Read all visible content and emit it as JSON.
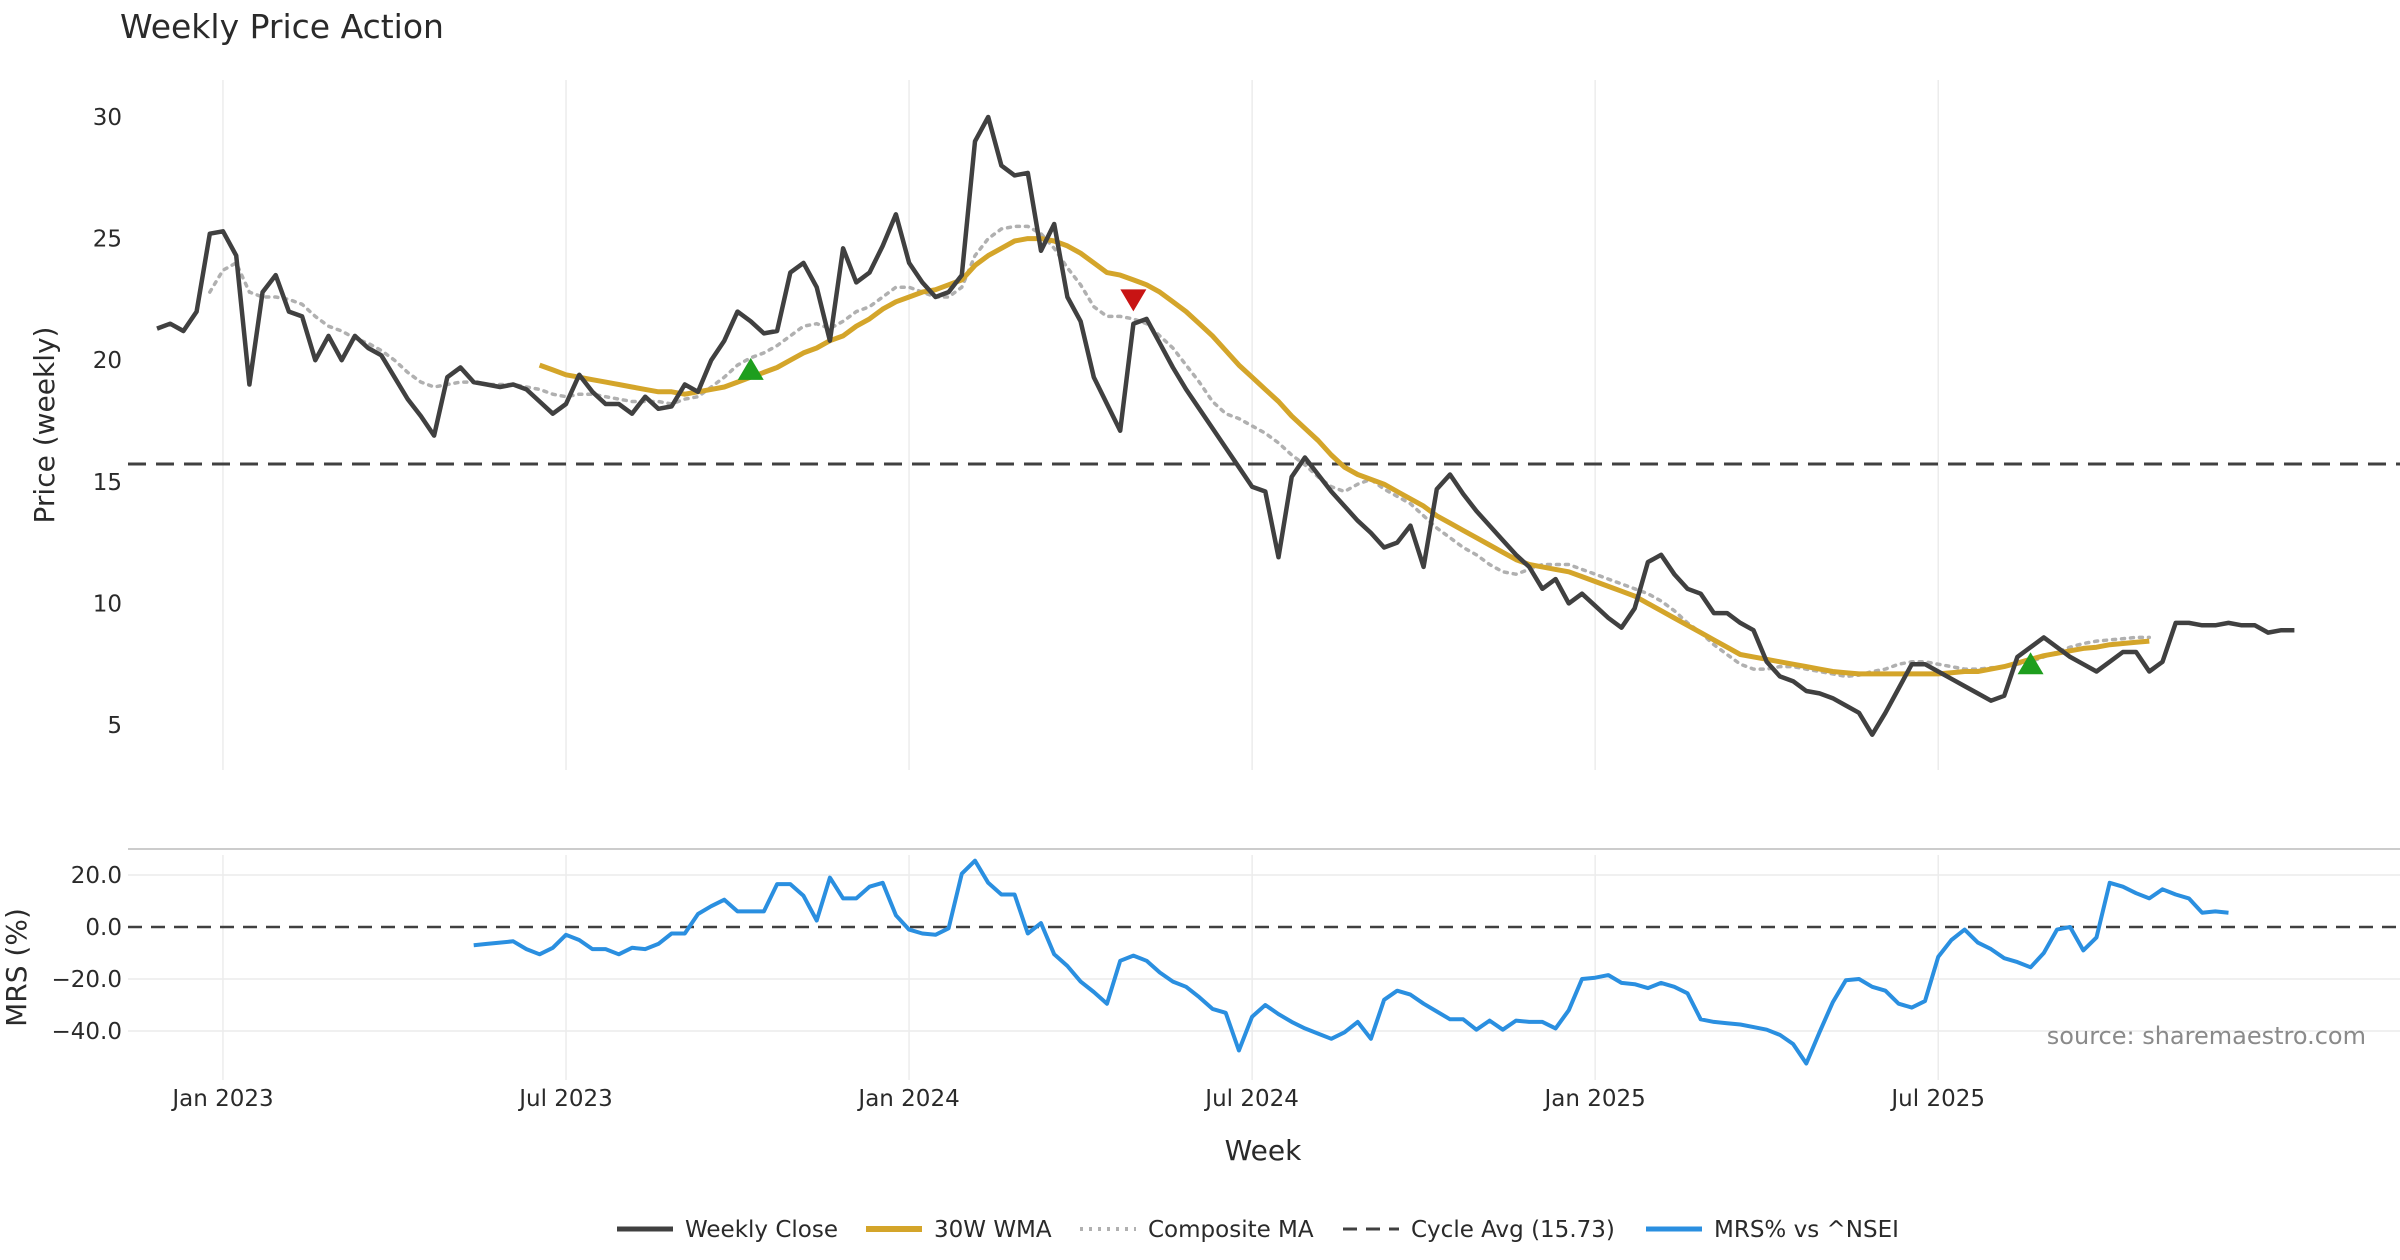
{
  "chart_data": {
    "type": "line",
    "title": "Weekly Price Action",
    "xlabel": "Week",
    "source_note": "source: sharemaestro.com",
    "x_ticks": [
      "Jan 2023",
      "Jul 2023",
      "Jan 2024",
      "Jul 2024",
      "Jan 2025",
      "Jul 2025"
    ],
    "x_range_weeks": [
      0,
      170
    ],
    "price_panel": {
      "ylabel": "Price (weekly)",
      "ylim": [
        3,
        31.5
      ],
      "yticks": [
        5,
        10,
        15,
        20,
        25,
        30
      ],
      "cycle_avg": 15.73,
      "series": [
        {
          "name": "Weekly Close",
          "color": "#404040",
          "style": "solid",
          "values": [
            21.3,
            21.5,
            21.2,
            22.0,
            25.2,
            25.3,
            24.3,
            19.0,
            22.8,
            23.5,
            22.0,
            21.8,
            20.0,
            21.0,
            20.0,
            21.0,
            20.5,
            20.2,
            19.3,
            18.4,
            17.7,
            16.9,
            19.3,
            19.7,
            19.1,
            19.0,
            18.9,
            19.0,
            18.8,
            18.3,
            17.8,
            18.2,
            19.4,
            18.7,
            18.2,
            18.2,
            17.8,
            18.5,
            18.0,
            18.1,
            19.0,
            18.7,
            20.0,
            20.8,
            22.0,
            21.6,
            21.1,
            21.2,
            23.6,
            24.0,
            23.0,
            20.8,
            24.6,
            23.2,
            23.6,
            24.7,
            26.0,
            24.0,
            23.2,
            22.6,
            22.8,
            23.5,
            29.0,
            30.0,
            28.0,
            27.6,
            27.7,
            24.5,
            25.6,
            22.6,
            21.6,
            19.3,
            18.2,
            17.1,
            21.5,
            21.7,
            20.7,
            19.7,
            18.8,
            18.0,
            17.2,
            16.4,
            15.6,
            14.8,
            14.6,
            11.9,
            15.2,
            16.0,
            15.3,
            14.6,
            14.0,
            13.4,
            12.9,
            12.3,
            12.5,
            13.2,
            11.5,
            14.7,
            15.3,
            14.5,
            13.8,
            13.2,
            12.6,
            12.0,
            11.5,
            10.6,
            11.0,
            10.0,
            10.4,
            9.9,
            9.4,
            9.0,
            9.8,
            11.7,
            12.0,
            11.2,
            10.6,
            10.4,
            9.6,
            9.6,
            9.2,
            8.9,
            7.6,
            7.0,
            6.8,
            6.4,
            6.3,
            6.1,
            5.8,
            5.5,
            4.6,
            5.5,
            6.5,
            7.5,
            7.5,
            7.2,
            6.9,
            6.6,
            6.3,
            6.0,
            6.2,
            7.8,
            8.2,
            8.6,
            8.2,
            7.8,
            7.5,
            7.2,
            7.6,
            8.0,
            8.0,
            7.2,
            7.6,
            9.2,
            9.2,
            9.1,
            9.1,
            9.2,
            9.1,
            9.1,
            8.8,
            8.9,
            8.9
          ]
        },
        {
          "name": "30W WMA",
          "color": "#d4a52a",
          "style": "solid",
          "values": [
            null,
            null,
            null,
            null,
            null,
            null,
            null,
            null,
            null,
            null,
            null,
            null,
            null,
            null,
            null,
            null,
            null,
            null,
            null,
            null,
            null,
            null,
            null,
            null,
            null,
            null,
            null,
            null,
            null,
            19.8,
            19.6,
            19.4,
            19.3,
            19.2,
            19.1,
            19.0,
            18.9,
            18.8,
            18.7,
            18.7,
            18.6,
            18.7,
            18.8,
            18.9,
            19.1,
            19.3,
            19.5,
            19.7,
            20.0,
            20.3,
            20.5,
            20.8,
            21.0,
            21.4,
            21.7,
            22.1,
            22.4,
            22.6,
            22.8,
            22.9,
            23.1,
            23.3,
            23.9,
            24.3,
            24.6,
            24.9,
            25.0,
            25.0,
            24.9,
            24.7,
            24.4,
            24.0,
            23.6,
            23.5,
            23.3,
            23.1,
            22.8,
            22.4,
            22.0,
            21.5,
            21.0,
            20.4,
            19.8,
            19.3,
            18.8,
            18.3,
            17.7,
            17.2,
            16.7,
            16.1,
            15.6,
            15.3,
            15.1,
            14.9,
            14.6,
            14.3,
            14.0,
            13.6,
            13.3,
            13.0,
            12.7,
            12.4,
            12.1,
            11.8,
            11.6,
            11.5,
            11.4,
            11.3,
            11.1,
            10.9,
            10.7,
            10.5,
            10.3,
            10.0,
            9.7,
            9.4,
            9.1,
            8.8,
            8.5,
            8.2,
            7.9,
            7.8,
            7.7,
            7.6,
            7.5,
            7.4,
            7.3,
            7.2,
            7.15,
            7.1,
            7.1,
            7.1,
            7.1,
            7.1,
            7.1,
            7.1,
            7.15,
            7.2,
            7.2,
            7.3,
            7.4,
            7.55,
            7.7,
            7.85,
            7.95,
            8.05,
            8.15,
            8.2,
            8.3,
            8.35,
            8.4,
            8.45
          ]
        },
        {
          "name": "Composite MA",
          "color": "#b0b0b0",
          "style": "dotted",
          "values": [
            null,
            null,
            null,
            null,
            22.8,
            23.7,
            24.0,
            22.8,
            22.6,
            22.6,
            22.5,
            22.3,
            21.8,
            21.4,
            21.2,
            20.9,
            20.7,
            20.4,
            20.0,
            19.5,
            19.1,
            18.9,
            19.0,
            19.1,
            19.1,
            19.0,
            19.0,
            19.0,
            18.9,
            18.8,
            18.6,
            18.5,
            18.6,
            18.6,
            18.5,
            18.4,
            18.3,
            18.3,
            18.3,
            18.2,
            18.4,
            18.5,
            18.9,
            19.3,
            19.8,
            20.1,
            20.3,
            20.6,
            21.0,
            21.4,
            21.5,
            21.3,
            21.6,
            22.0,
            22.2,
            22.6,
            23.0,
            23.0,
            22.8,
            22.6,
            22.6,
            23.0,
            24.3,
            25.0,
            25.4,
            25.5,
            25.5,
            25.2,
            24.6,
            23.8,
            23.1,
            22.2,
            21.8,
            21.8,
            21.7,
            21.5,
            21.0,
            20.5,
            19.8,
            19.1,
            18.3,
            17.8,
            17.6,
            17.3,
            17.0,
            16.6,
            16.1,
            15.7,
            15.2,
            14.8,
            14.6,
            14.9,
            15.1,
            14.7,
            14.4,
            14.1,
            13.6,
            13.1,
            12.7,
            12.3,
            12.0,
            11.6,
            11.3,
            11.2,
            11.4,
            11.6,
            11.6,
            11.6,
            11.4,
            11.2,
            11.0,
            10.8,
            10.6,
            10.4,
            10.1,
            9.7,
            9.2,
            8.8,
            8.3,
            7.9,
            7.5,
            7.3,
            7.3,
            7.4,
            7.4,
            7.3,
            7.2,
            7.1,
            7.0,
            7.05,
            7.2,
            7.3,
            7.5,
            7.6,
            7.6,
            7.5,
            7.4,
            7.3,
            7.3,
            7.35,
            7.4,
            7.5,
            7.6,
            7.8,
            8.0,
            8.2,
            8.35,
            8.45,
            8.5,
            8.55,
            8.6,
            8.6
          ]
        },
        {
          "name": "Cycle Avg (15.73)",
          "color": "#404040",
          "style": "dashed",
          "value": 15.73
        }
      ],
      "markers": [
        {
          "type": "buy",
          "week": 45,
          "value": 19.6,
          "color": "#1e9e1e"
        },
        {
          "type": "sell",
          "week": 74,
          "value": 22.5,
          "color": "#c81414"
        },
        {
          "type": "buy",
          "week": 142,
          "value": 7.5,
          "color": "#1e9e1e"
        }
      ]
    },
    "mrs_panel": {
      "ylabel": "MRS (%)",
      "ylim": [
        -55,
        30
      ],
      "yticks": [
        20.0,
        0.0,
        -20.0,
        -40.0
      ],
      "ytick_labels": [
        "20.0",
        "0.0",
        "−20.0",
        "−40.0"
      ],
      "series": [
        {
          "name": "MRS% vs ^NSEI",
          "color": "#2a8fe0",
          "style": "solid",
          "start_week": 24,
          "values": [
            -7.0,
            -6.5,
            -6.0,
            -5.5,
            -8.5,
            -10.5,
            -8.0,
            -3.0,
            -5.0,
            -8.5,
            -8.5,
            -10.5,
            -8.0,
            -8.5,
            -6.5,
            -2.5,
            -2.5,
            5.0,
            8.0,
            10.5,
            6.0,
            6.0,
            6.0,
            16.5,
            16.5,
            12.0,
            2.5,
            19.0,
            11.0,
            11.0,
            15.5,
            17.0,
            4.5,
            -1.0,
            -2.5,
            -3.0,
            -0.5,
            20.5,
            25.5,
            17.0,
            12.5,
            12.5,
            -2.5,
            1.5,
            -10.5,
            -15.0,
            -21.0,
            -25.0,
            -29.5,
            -13.0,
            -11.0,
            -13.0,
            -17.5,
            -21.0,
            -23.0,
            -27.0,
            -31.5,
            -33.0,
            -47.5,
            -34.5,
            -30.0,
            -33.5,
            -36.5,
            -39.0,
            -41.0,
            -43.0,
            -40.5,
            -36.5,
            -43.0,
            -28.0,
            -24.5,
            -26.0,
            -29.5,
            -32.5,
            -35.5,
            -35.5,
            -39.5,
            -36.0,
            -39.5,
            -36.0,
            -36.5,
            -36.5,
            -39.0,
            -32.0,
            -20.0,
            -19.5,
            -18.5,
            -21.5,
            -22.0,
            -23.5,
            -21.5,
            -23.0,
            -25.5,
            -35.5,
            -36.5,
            -37.0,
            -37.5,
            -38.5,
            -39.5,
            -41.5,
            -45.0,
            -52.5,
            -40.5,
            -29.0,
            -20.5,
            -20.0,
            -23.0,
            -24.5,
            -29.5,
            -31.0,
            -28.5,
            -11.5,
            -5.0,
            -1.0,
            -6.0,
            -8.5,
            -12.0,
            -13.5,
            -15.5,
            -10.0,
            -1.0,
            0.0,
            -9.0,
            -4.0,
            17.0,
            15.5,
            13.0,
            11.0,
            14.5,
            12.5,
            11.0,
            5.5,
            6.0,
            5.5
          ]
        }
      ]
    },
    "legend": {
      "placement": "bottom-center",
      "entries": [
        "Weekly Close",
        "30W WMA",
        "Composite MA",
        "Cycle Avg (15.73)",
        "MRS% vs ^NSEI"
      ]
    }
  }
}
